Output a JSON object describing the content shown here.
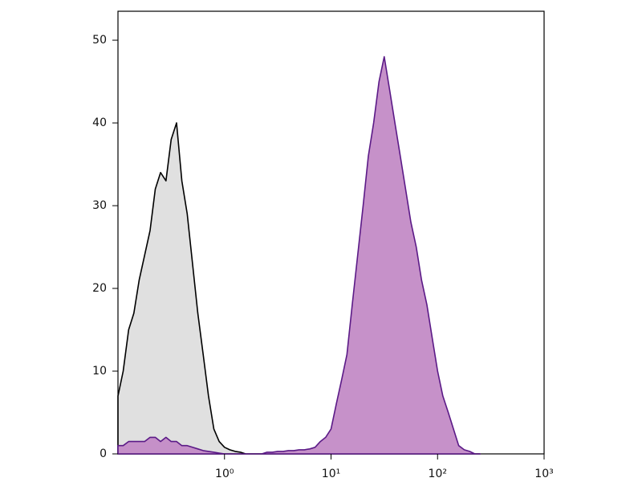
{
  "chart_data": {
    "type": "histogram-overlay",
    "x": [
      0.1,
      0.112,
      0.126,
      0.141,
      0.158,
      0.178,
      0.2,
      0.224,
      0.251,
      0.282,
      0.316,
      0.355,
      0.398,
      0.447,
      0.501,
      0.562,
      0.631,
      0.708,
      0.794,
      0.891,
      1,
      1.12,
      1.26,
      1.41,
      1.58,
      1.78,
      2,
      2.24,
      2.51,
      2.82,
      3.16,
      3.55,
      3.98,
      4.47,
      5.01,
      5.62,
      6.31,
      7.08,
      7.94,
      8.91,
      10,
      11.2,
      12.6,
      14.1,
      15.8,
      17.8,
      20,
      22.4,
      25.1,
      28.2,
      31.6,
      35.5,
      39.8,
      44.7,
      50.1,
      56.2,
      63.1,
      70.8,
      79.4,
      89.1,
      100,
      112,
      126,
      141,
      158,
      178,
      200,
      224,
      251
    ],
    "series": [
      {
        "color": "#000000",
        "fill": "#e0e0e0",
        "values": [
          7,
          10,
          15,
          17,
          21,
          24,
          27,
          32,
          34,
          33,
          38,
          40,
          33,
          29,
          23,
          17,
          12,
          7,
          3,
          1.5,
          0.8,
          0.5,
          0.3,
          0.2,
          0,
          0,
          0,
          0,
          0,
          0,
          0,
          0,
          0,
          0,
          0,
          0,
          0,
          0,
          0,
          0,
          0,
          0,
          0,
          0,
          0,
          0,
          0,
          0,
          0,
          0,
          0,
          0,
          0,
          0,
          0,
          0,
          0,
          0,
          0,
          0,
          0,
          0,
          0,
          0,
          0,
          0,
          0,
          0,
          0
        ]
      },
      {
        "color": "#5b1a87",
        "fill": "#c38bc6",
        "values": [
          1,
          1,
          1.5,
          1.5,
          1.5,
          1.5,
          2,
          2,
          1.5,
          2,
          1.5,
          1.5,
          1,
          1,
          0.8,
          0.6,
          0.4,
          0.3,
          0.2,
          0.1,
          0,
          0,
          0,
          0,
          0,
          0,
          0,
          0,
          0.2,
          0.2,
          0.3,
          0.3,
          0.4,
          0.4,
          0.5,
          0.5,
          0.6,
          0.8,
          1.5,
          2,
          3,
          6,
          9,
          12,
          18,
          24,
          30,
          36,
          40,
          45,
          48,
          44,
          40,
          36,
          32,
          28,
          25,
          21,
          18,
          14,
          10,
          7,
          5,
          3,
          1,
          0.5,
          0.3,
          0,
          0
        ]
      }
    ],
    "xscale": "log",
    "xlim": [
      0.1,
      1000
    ],
    "xticks": [
      {
        "value": 1,
        "label": "10⁰"
      },
      {
        "value": 10,
        "label": "10¹"
      },
      {
        "value": 100,
        "label": "10²"
      },
      {
        "value": 1000,
        "label": "10³"
      }
    ],
    "ylim": [
      0,
      53.5
    ],
    "yticks": [
      0,
      10,
      20,
      30,
      40,
      50
    ]
  }
}
